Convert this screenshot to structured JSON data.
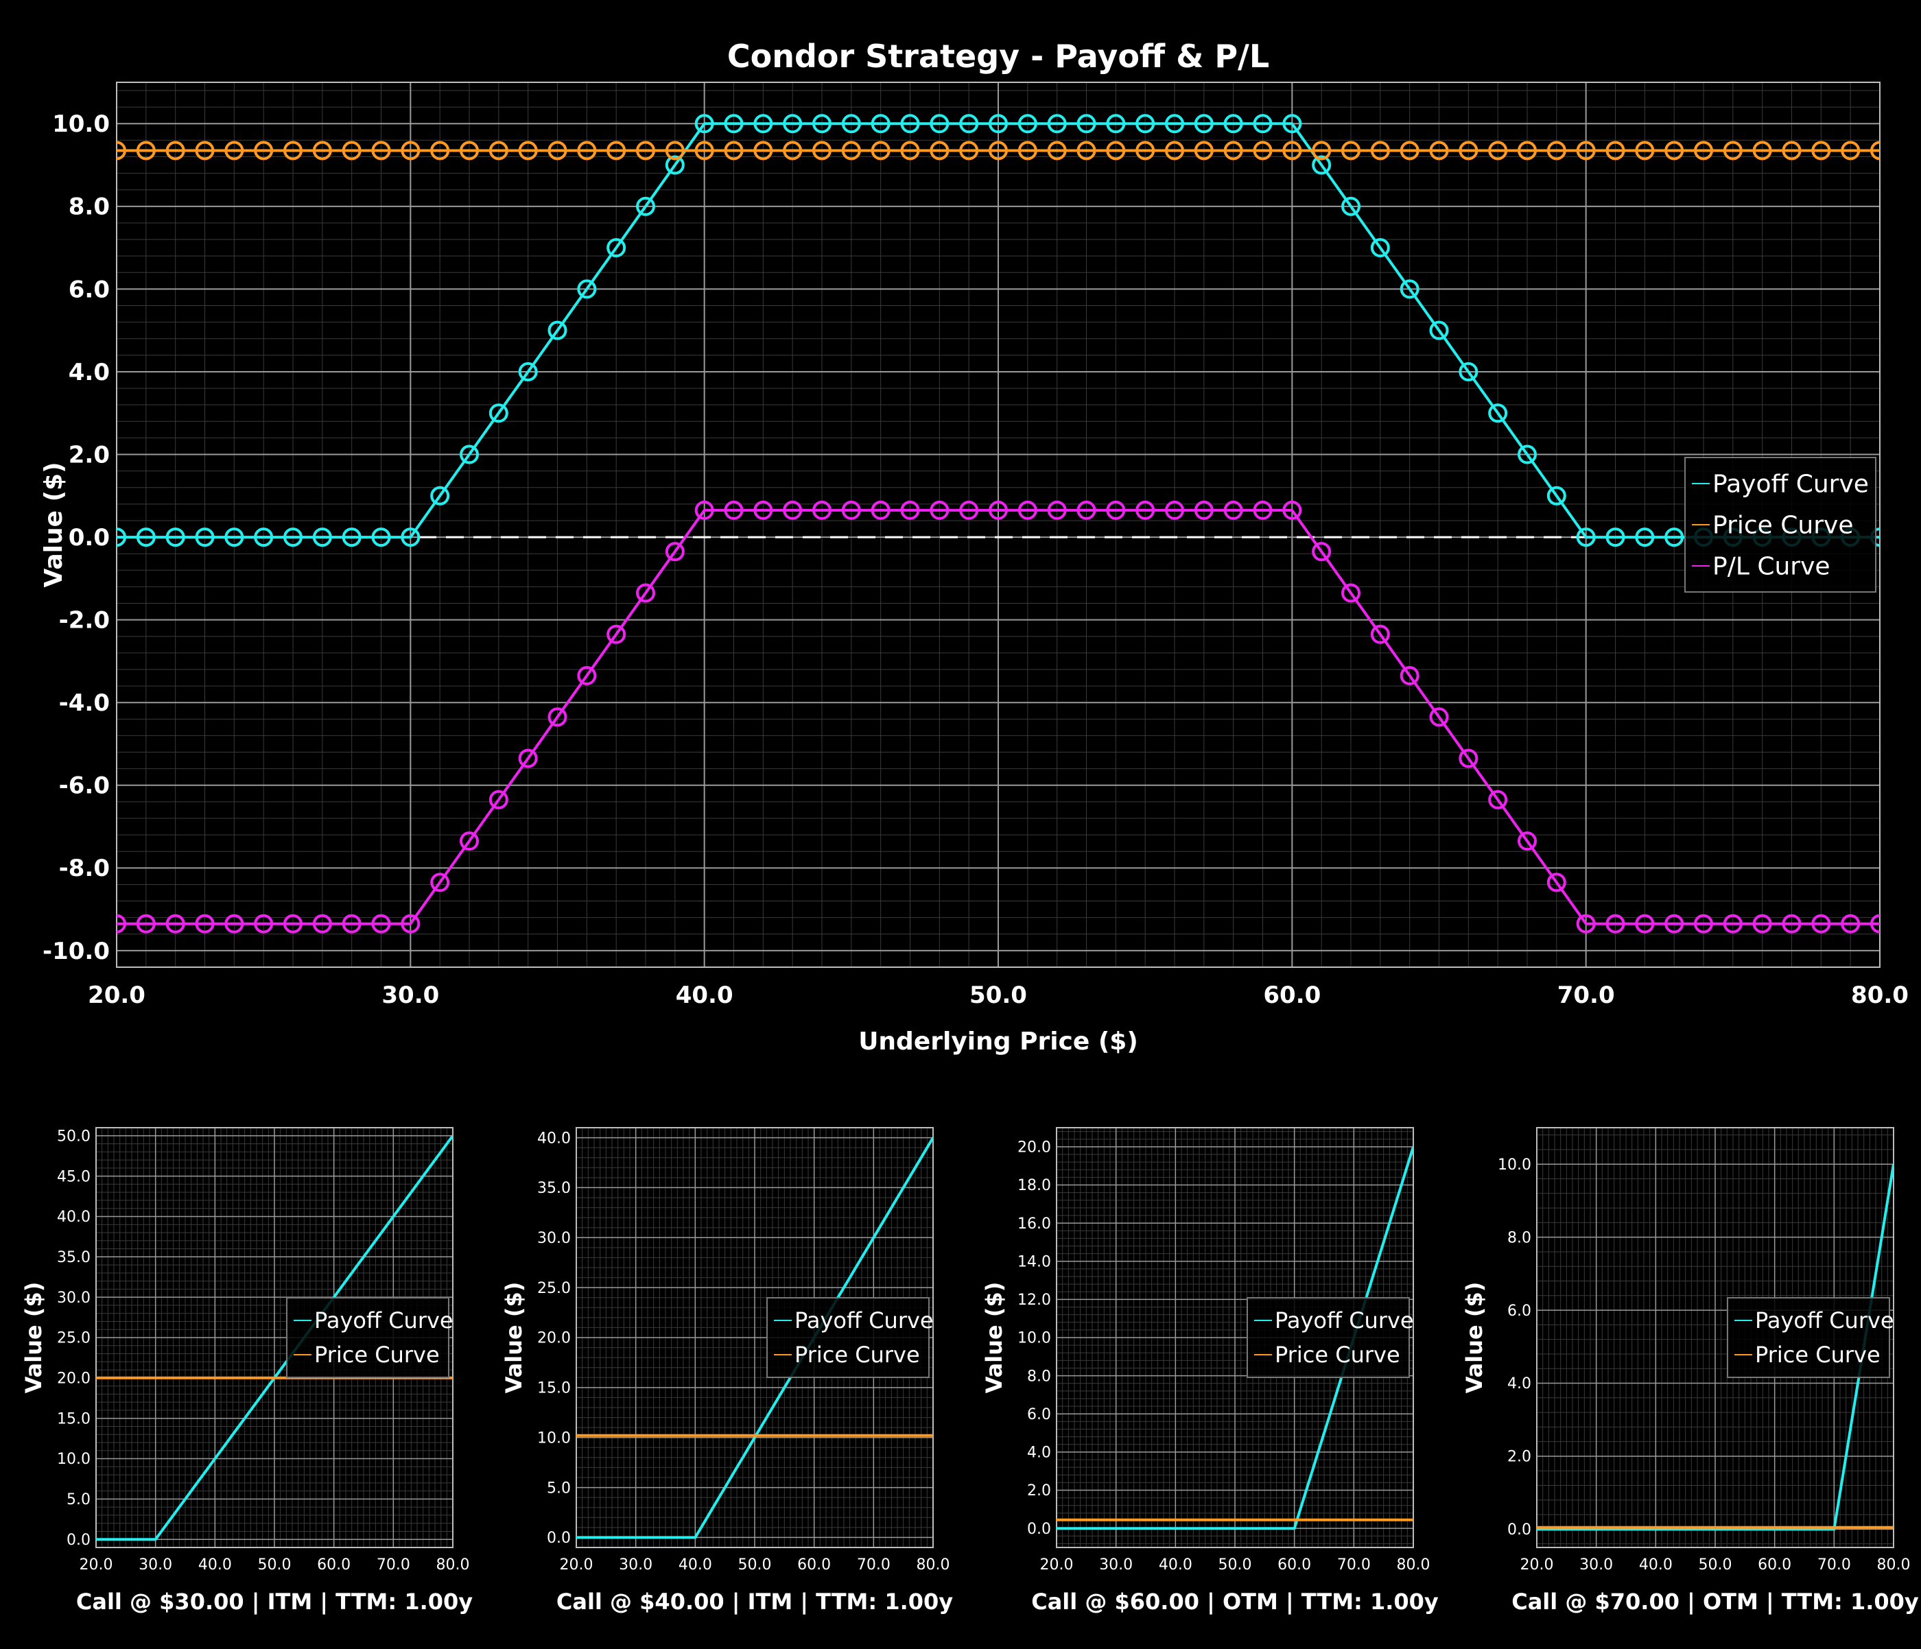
{
  "colors": {
    "background": "#000000",
    "payoff": "#22eeee",
    "price": "#ff9922",
    "pl": "#ee22ee",
    "grid_major": "#9a9a9a",
    "grid_minor": "#3a3a3a",
    "text": "#ffffff"
  },
  "chart_data": [
    {
      "type": "line",
      "title": "Condor Strategy - Payoff & P/L",
      "xlabel": "Underlying Price ($)",
      "ylabel": "Value ($)",
      "xlim": [
        20,
        80
      ],
      "ylim": [
        -10.4,
        11
      ],
      "xticks": [
        "20.0",
        "30.0",
        "40.0",
        "50.0",
        "60.0",
        "70.0",
        "80.0"
      ],
      "yticks": [
        "-10.0",
        "-8.0",
        "-6.0",
        "-4.0",
        "-2.0",
        "0.0",
        "2.0",
        "4.0",
        "6.0",
        "8.0",
        "10.0"
      ],
      "markers": "circle",
      "zero_line": "dashed",
      "legend": [
        "Payoff Curve",
        "Price Curve",
        "P/L Curve"
      ],
      "legend_position": "right",
      "series": [
        {
          "name": "Payoff Curve",
          "kind": "condor_payoff",
          "strikes": [
            30,
            40,
            60,
            70
          ],
          "x_start": 20,
          "x_end": 80,
          "x_step": 1
        },
        {
          "name": "Price Curve",
          "kind": "constant",
          "value": 9.35,
          "x_start": 20,
          "x_end": 80,
          "x_step": 1
        },
        {
          "name": "P/L Curve",
          "kind": "condor_pl",
          "strikes": [
            30,
            40,
            60,
            70
          ],
          "premium": 9.35,
          "x_start": 20,
          "x_end": 80,
          "x_step": 1
        }
      ]
    },
    {
      "type": "line",
      "xlabel": "Call @ $30.00 | ITM | TTM: 1.00y",
      "ylabel": "Value ($)",
      "xlim": [
        20,
        80
      ],
      "ylim": [
        -1,
        51
      ],
      "xticks": [
        "20.0",
        "30.0",
        "40.0",
        "50.0",
        "60.0",
        "70.0",
        "80.0"
      ],
      "yticks": [
        "0.0",
        "5.0",
        "10.0",
        "15.0",
        "20.0",
        "25.0",
        "30.0",
        "35.0",
        "40.0",
        "45.0",
        "50.0"
      ],
      "legend": [
        "Payoff Curve",
        "Price Curve"
      ],
      "legend_position": "right",
      "series": [
        {
          "name": "Payoff Curve",
          "kind": "call",
          "strike": 30
        },
        {
          "name": "Price Curve",
          "kind": "constant",
          "value": 20.0
        }
      ]
    },
    {
      "type": "line",
      "xlabel": "Call @ $40.00 | ITM | TTM: 1.00y",
      "ylabel": "Value ($)",
      "xlim": [
        20,
        80
      ],
      "ylim": [
        -1,
        41
      ],
      "xticks": [
        "20.0",
        "30.0",
        "40.0",
        "50.0",
        "60.0",
        "70.0",
        "80.0"
      ],
      "yticks": [
        "0.0",
        "5.0",
        "10.0",
        "15.0",
        "20.0",
        "25.0",
        "30.0",
        "35.0",
        "40.0"
      ],
      "legend": [
        "Payoff Curve",
        "Price Curve"
      ],
      "legend_position": "right",
      "series": [
        {
          "name": "Payoff Curve",
          "kind": "call",
          "strike": 40
        },
        {
          "name": "Price Curve",
          "kind": "constant",
          "value": 10.2
        }
      ]
    },
    {
      "type": "line",
      "xlabel": "Call @ $60.00 | OTM | TTM: 1.00y",
      "ylabel": "Value ($)",
      "xlim": [
        20,
        80
      ],
      "ylim": [
        -1,
        21
      ],
      "xticks": [
        "20.0",
        "30.0",
        "40.0",
        "50.0",
        "60.0",
        "70.0",
        "80.0"
      ],
      "yticks": [
        "0.0",
        "2.0",
        "4.0",
        "6.0",
        "8.0",
        "10.0",
        "12.0",
        "14.0",
        "16.0",
        "18.0",
        "20.0"
      ],
      "legend": [
        "Payoff Curve",
        "Price Curve"
      ],
      "legend_position": "right",
      "series": [
        {
          "name": "Payoff Curve",
          "kind": "call",
          "strike": 60
        },
        {
          "name": "Price Curve",
          "kind": "constant",
          "value": 0.45
        }
      ]
    },
    {
      "type": "line",
      "xlabel": "Call @ $70.00 | OTM | TTM: 1.00y",
      "ylabel": "Value ($)",
      "xlim": [
        20,
        80
      ],
      "ylim": [
        -0.5,
        11
      ],
      "xticks": [
        "20.0",
        "30.0",
        "40.0",
        "50.0",
        "60.0",
        "70.0",
        "80.0"
      ],
      "yticks": [
        "0.0",
        "2.0",
        "4.0",
        "6.0",
        "8.0",
        "10.0"
      ],
      "legend": [
        "Payoff Curve",
        "Price Curve"
      ],
      "legend_position": "right",
      "series": [
        {
          "name": "Payoff Curve",
          "kind": "call",
          "strike": 70
        },
        {
          "name": "Price Curve",
          "kind": "constant",
          "value": 0.05
        }
      ]
    }
  ]
}
